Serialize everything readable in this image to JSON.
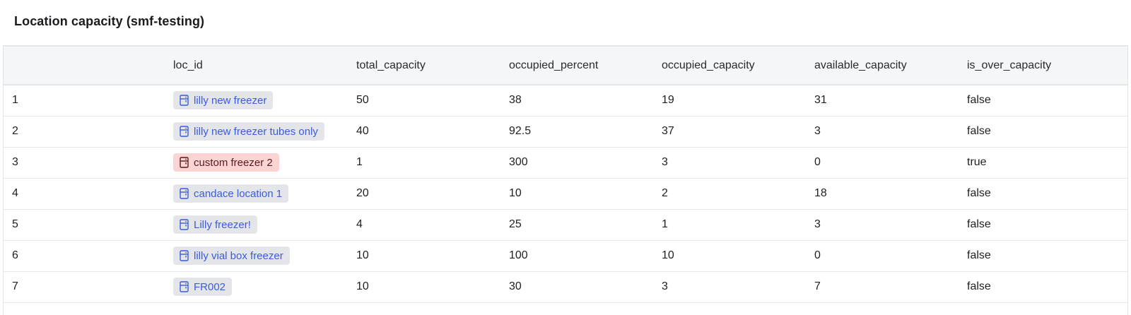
{
  "panel": {
    "title": "Location capacity (smf-testing)"
  },
  "table": {
    "columns": [
      "",
      "loc_id",
      "total_capacity",
      "occupied_percent",
      "occupied_capacity",
      "available_capacity",
      "is_over_capacity"
    ],
    "rows": [
      {
        "index": "1",
        "loc_id": "lilly new freezer",
        "total_capacity": "50",
        "occupied_percent": "38",
        "occupied_capacity": "19",
        "available_capacity": "31",
        "is_over_capacity": "false"
      },
      {
        "index": "2",
        "loc_id": "lilly new freezer tubes only",
        "total_capacity": "40",
        "occupied_percent": "92.5",
        "occupied_capacity": "37",
        "available_capacity": "3",
        "is_over_capacity": "false"
      },
      {
        "index": "3",
        "loc_id": "custom freezer 2",
        "total_capacity": "1",
        "occupied_percent": "300",
        "occupied_capacity": "3",
        "available_capacity": "0",
        "is_over_capacity": "true"
      },
      {
        "index": "4",
        "loc_id": "candace location 1",
        "total_capacity": "20",
        "occupied_percent": "10",
        "occupied_capacity": "2",
        "available_capacity": "18",
        "is_over_capacity": "false"
      },
      {
        "index": "5",
        "loc_id": "Lilly freezer!",
        "total_capacity": "4",
        "occupied_percent": "25",
        "occupied_capacity": "1",
        "available_capacity": "3",
        "is_over_capacity": "false"
      },
      {
        "index": "6",
        "loc_id": "lilly vial box freezer",
        "total_capacity": "10",
        "occupied_percent": "100",
        "occupied_capacity": "10",
        "available_capacity": "0",
        "is_over_capacity": "false"
      },
      {
        "index": "7",
        "loc_id": "FR002",
        "total_capacity": "10",
        "occupied_percent": "30",
        "occupied_capacity": "3",
        "available_capacity": "7",
        "is_over_capacity": "false"
      }
    ]
  },
  "icons": {
    "chip_icon": "freezer-icon"
  },
  "colors": {
    "link": "#3b5bdb",
    "chip_bg": "#e4e5e8",
    "over_capacity_bg": "#fcd4d4",
    "over_capacity_text": "#5a1a1a",
    "header_bg": "#f5f6f8"
  }
}
